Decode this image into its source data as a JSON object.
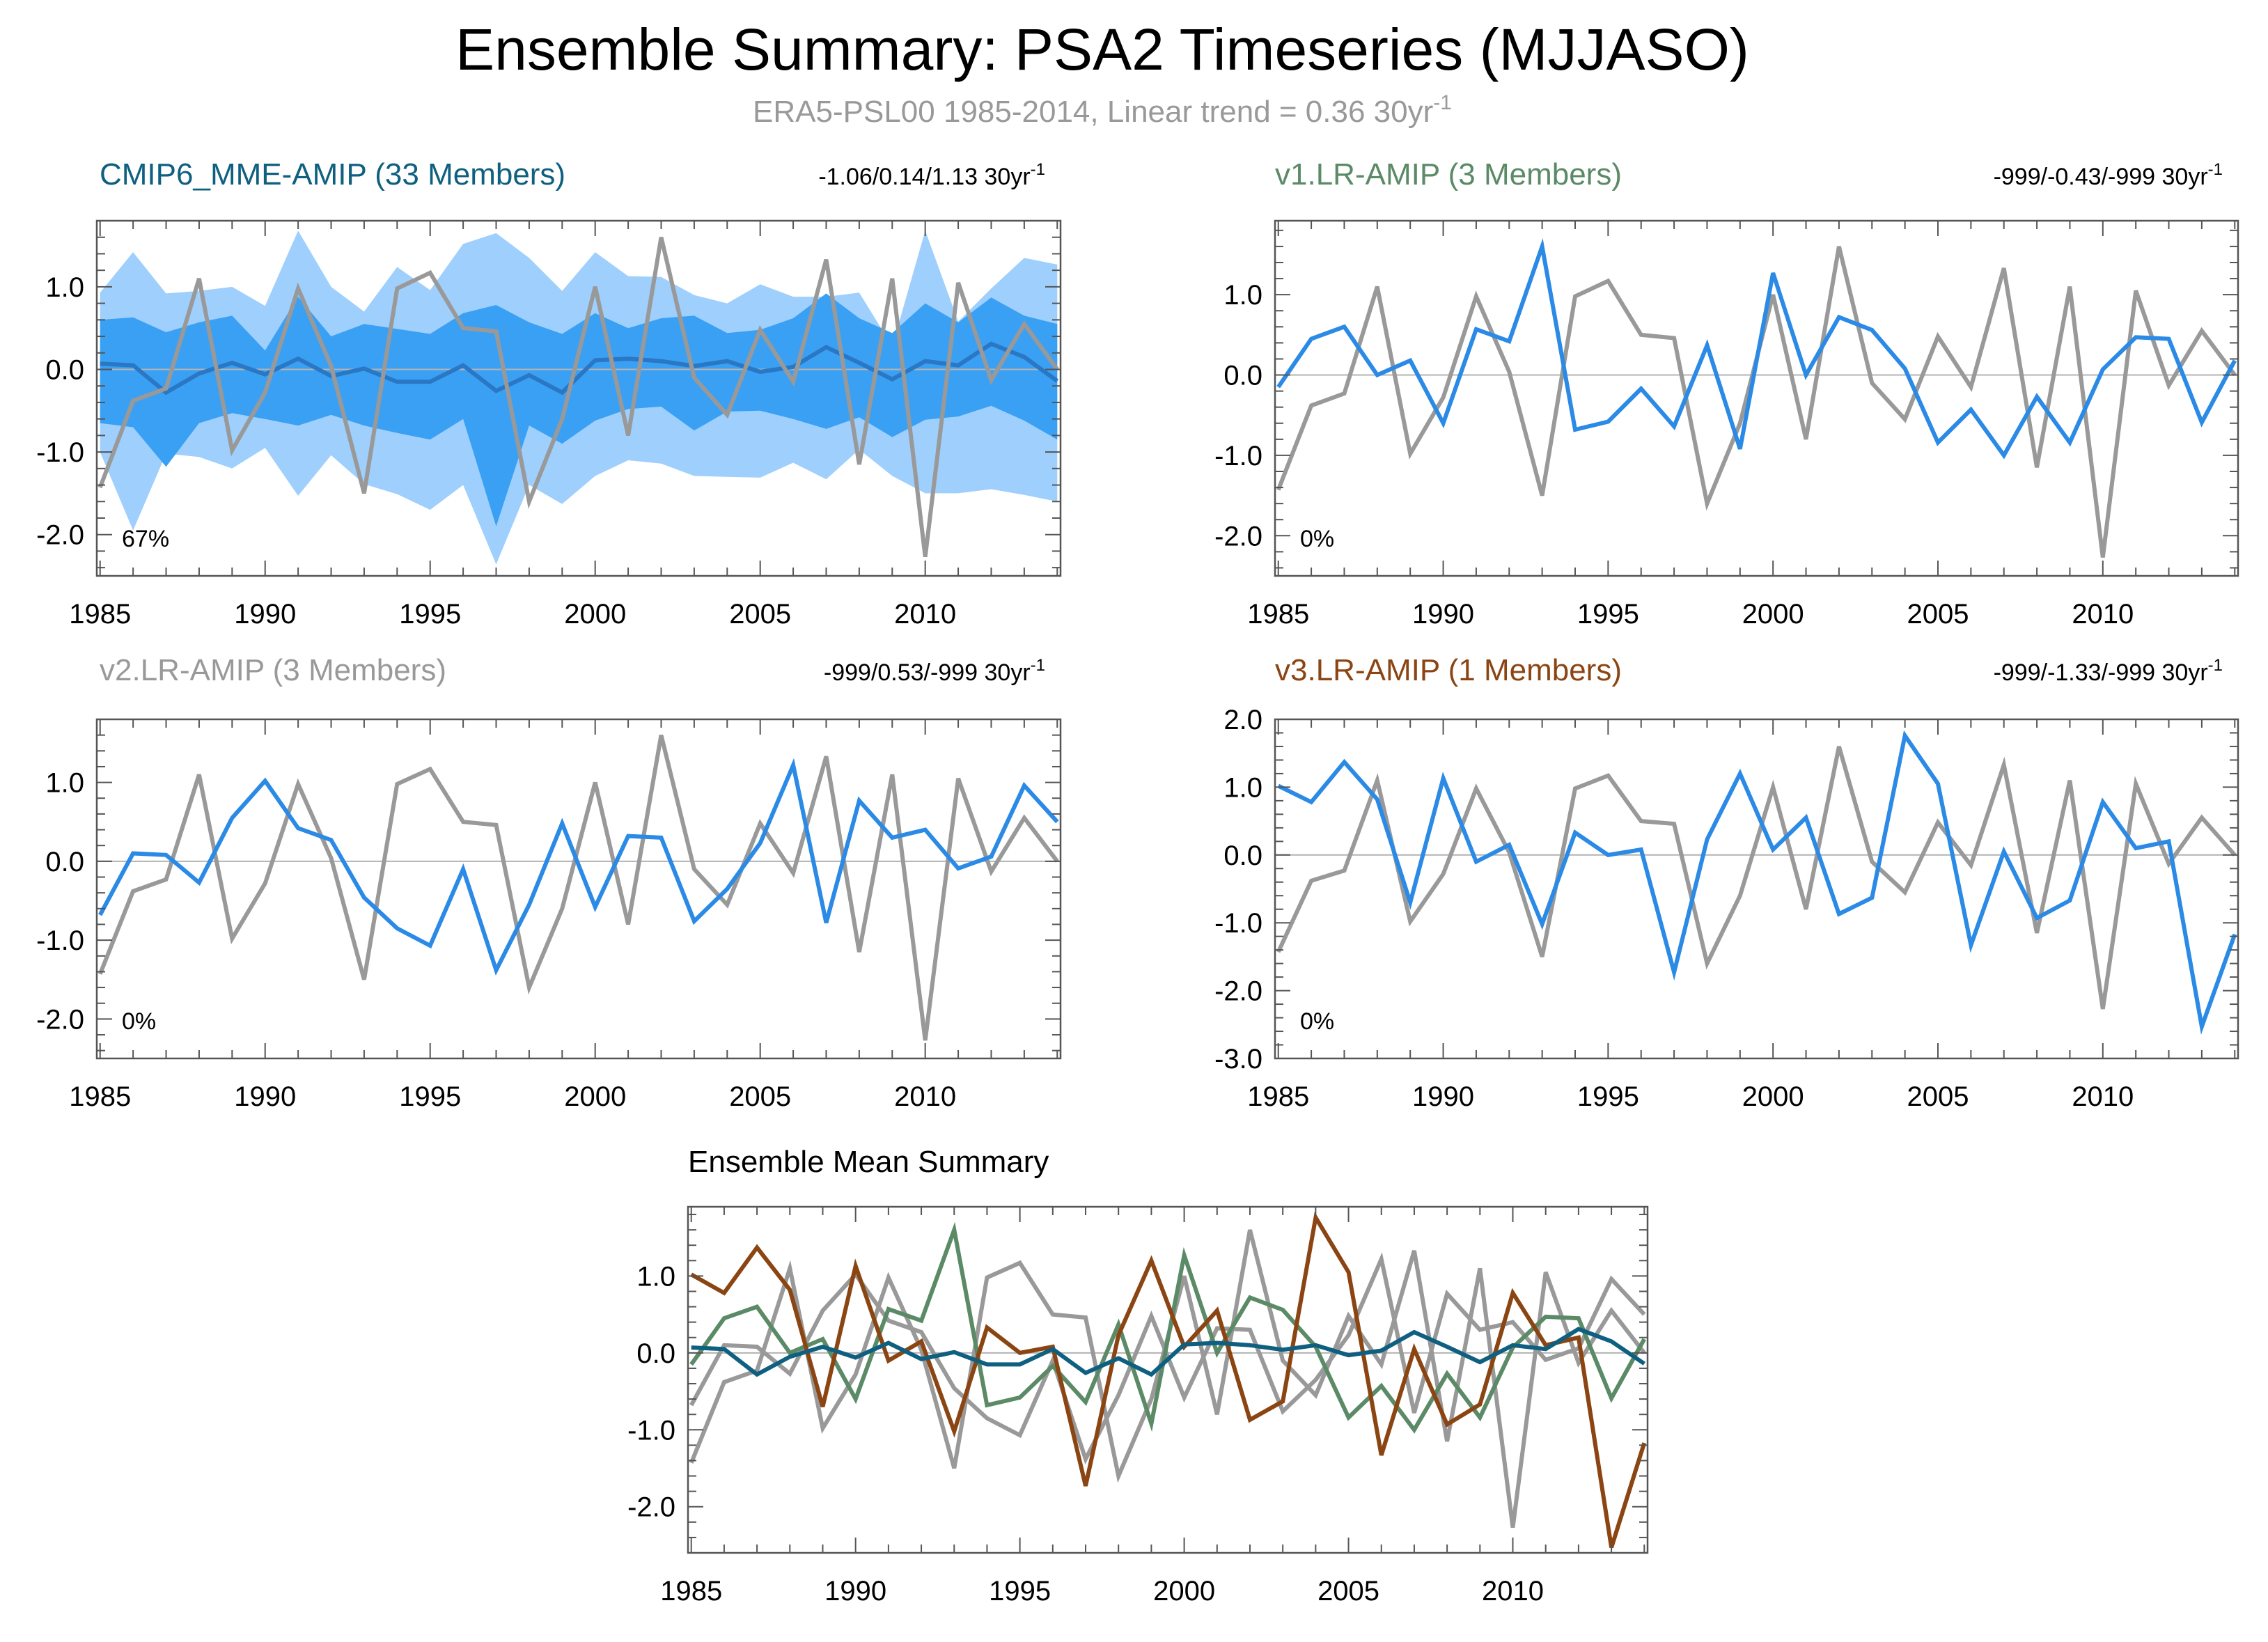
{
  "title": "Ensemble Summary: PSA2 Timeseries (MJJASO)",
  "subtitle": {
    "text": "ERA5-PSL00 1985-2014, Linear trend = 0.36 30yr",
    "sup": "-1"
  },
  "colors": {
    "observed": "#999999",
    "model": "#2a8ae6",
    "shade_outer": "#9fcffc",
    "shade_inner": "#3aa0f4",
    "mme_mean": "#2a77c4",
    "cmip6": "#0f6080",
    "v1": "#5b8a66",
    "v2": "#999999",
    "v3": "#8b4513",
    "zero_line": "#b3b3b3"
  },
  "chart_data": [
    {
      "id": "cmip6",
      "type": "line",
      "title": "CMIP6_MME-AMIP (33 Members)",
      "title_color": "#0f6080",
      "stats": "-1.06/0.14/1.13 30yr",
      "stats_sup": "-1",
      "pct": "67%",
      "x": [
        1985,
        1986,
        1987,
        1988,
        1989,
        1990,
        1991,
        1992,
        1993,
        1994,
        1995,
        1996,
        1997,
        1998,
        1999,
        2000,
        2001,
        2002,
        2003,
        2004,
        2005,
        2006,
        2007,
        2008,
        2009,
        2010,
        2011,
        2012,
        2013,
        2014
      ],
      "xticks": [
        1985,
        1990,
        1995,
        2000,
        2005,
        2010
      ],
      "xlim": [
        1984.9,
        2014.1
      ],
      "ylim": [
        -2.5,
        1.8
      ],
      "yticks": [
        1.0,
        0.0,
        -1.0,
        -2.0
      ],
      "ytick_labels": [
        "1.0",
        "0.0",
        "-1.0",
        "-2.0"
      ],
      "observed": [
        -1.43,
        -0.38,
        -0.23,
        1.1,
        -0.98,
        -0.28,
        0.98,
        0.04,
        -1.5,
        0.98,
        1.17,
        0.5,
        0.46,
        -1.6,
        -0.6,
        1.0,
        -0.8,
        1.6,
        -0.1,
        -0.55,
        0.48,
        -0.15,
        1.33,
        -1.15,
        1.1,
        -2.27,
        1.05,
        -0.13,
        0.55,
        0.0
      ],
      "bands": {
        "outer_upper": [
          0.93,
          1.42,
          0.92,
          0.95,
          1.0,
          0.77,
          1.68,
          1.0,
          0.7,
          1.24,
          0.96,
          1.52,
          1.65,
          1.35,
          0.95,
          1.42,
          1.13,
          1.12,
          0.9,
          0.8,
          1.03,
          0.88,
          0.88,
          0.93,
          0.28,
          1.68,
          0.58,
          0.98,
          1.35,
          1.27
        ],
        "outer_lower": [
          -1.0,
          -1.95,
          -1.02,
          -1.06,
          -1.2,
          -0.95,
          -1.53,
          -1.04,
          -1.39,
          -1.51,
          -1.7,
          -1.4,
          -2.36,
          -1.4,
          -1.63,
          -1.29,
          -1.1,
          -1.14,
          -1.29,
          -1.3,
          -1.31,
          -1.13,
          -1.33,
          -0.97,
          -1.29,
          -1.5,
          -1.5,
          -1.45,
          -1.52,
          -1.6
        ],
        "inner_upper": [
          0.6,
          0.63,
          0.45,
          0.57,
          0.65,
          0.23,
          0.88,
          0.4,
          0.55,
          0.49,
          0.43,
          0.68,
          0.78,
          0.57,
          0.43,
          0.68,
          0.5,
          0.62,
          0.65,
          0.44,
          0.48,
          0.62,
          0.92,
          0.62,
          0.44,
          0.8,
          0.57,
          0.87,
          0.65,
          0.55
        ],
        "inner_lower": [
          -0.65,
          -0.7,
          -1.18,
          -0.65,
          -0.53,
          -0.6,
          -0.68,
          -0.55,
          -0.68,
          -0.77,
          -0.85,
          -0.6,
          -1.9,
          -0.68,
          -0.9,
          -0.62,
          -0.48,
          -0.45,
          -0.74,
          -0.51,
          -0.5,
          -0.6,
          -0.72,
          -0.58,
          -0.82,
          -0.61,
          -0.57,
          -0.44,
          -0.62,
          -0.85
        ]
      },
      "mean": [
        0.07,
        0.05,
        -0.28,
        -0.05,
        0.08,
        -0.06,
        0.13,
        -0.08,
        0.01,
        -0.15,
        -0.15,
        0.05,
        -0.26,
        -0.07,
        -0.28,
        0.11,
        0.13,
        0.1,
        0.04,
        0.1,
        -0.03,
        0.03,
        0.27,
        0.08,
        -0.12,
        0.1,
        0.05,
        0.31,
        0.15,
        -0.14
      ]
    },
    {
      "id": "v1",
      "type": "line",
      "title": "v1.LR-AMIP (3 Members)",
      "title_color": "#5b8a66",
      "stats": "-999/-0.43/-999 30yr",
      "stats_sup": "-1",
      "pct": "0%",
      "x": [
        1985,
        1986,
        1987,
        1988,
        1989,
        1990,
        1991,
        1992,
        1993,
        1994,
        1995,
        1996,
        1997,
        1998,
        1999,
        2000,
        2001,
        2002,
        2003,
        2004,
        2005,
        2006,
        2007,
        2008,
        2009,
        2010,
        2011,
        2012,
        2013,
        2014
      ],
      "xticks": [
        1985,
        1990,
        1995,
        2000,
        2005,
        2010
      ],
      "xlim": [
        1984.9,
        2014.1
      ],
      "ylim": [
        -2.5,
        1.92
      ],
      "yticks": [
        1.0,
        0.0,
        -1.0,
        -2.0
      ],
      "ytick_labels": [
        "1.0",
        "0.0",
        "-1.0",
        "-2.0"
      ],
      "observed": [
        -1.43,
        -0.38,
        -0.23,
        1.1,
        -0.98,
        -0.28,
        0.98,
        0.04,
        -1.5,
        0.98,
        1.17,
        0.5,
        0.46,
        -1.6,
        -0.6,
        1.0,
        -0.8,
        1.6,
        -0.1,
        -0.55,
        0.48,
        -0.15,
        1.33,
        -1.15,
        1.1,
        -2.27,
        1.05,
        -0.13,
        0.55,
        0.0
      ],
      "model": [
        -0.15,
        0.45,
        0.6,
        0.0,
        0.18,
        -0.6,
        0.57,
        0.42,
        1.6,
        -0.68,
        -0.58,
        -0.17,
        -0.64,
        0.37,
        -0.92,
        1.27,
        0.0,
        0.72,
        0.56,
        0.08,
        -0.84,
        -0.43,
        -1.0,
        -0.27,
        -0.84,
        0.07,
        0.47,
        0.45,
        -0.59,
        0.18
      ]
    },
    {
      "id": "v2",
      "type": "line",
      "title": "v2.LR-AMIP (3 Members)",
      "title_color": "#999999",
      "stats": "-999/0.53/-999 30yr",
      "stats_sup": "-1",
      "pct": "0%",
      "x": [
        1985,
        1986,
        1987,
        1988,
        1989,
        1990,
        1991,
        1992,
        1993,
        1994,
        1995,
        1996,
        1997,
        1998,
        1999,
        2000,
        2001,
        2002,
        2003,
        2004,
        2005,
        2006,
        2007,
        2008,
        2009,
        2010,
        2011,
        2012,
        2013,
        2014
      ],
      "xticks": [
        1985,
        1990,
        1995,
        2000,
        2005,
        2010
      ],
      "xlim": [
        1984.9,
        2014.1
      ],
      "ylim": [
        -2.5,
        1.8
      ],
      "yticks": [
        1.0,
        0.0,
        -1.0,
        -2.0
      ],
      "ytick_labels": [
        "1.0",
        "0.0",
        "-1.0",
        "-2.0"
      ],
      "observed": [
        -1.43,
        -0.38,
        -0.23,
        1.1,
        -0.98,
        -0.28,
        0.98,
        0.04,
        -1.5,
        0.98,
        1.17,
        0.5,
        0.46,
        -1.6,
        -0.6,
        1.0,
        -0.8,
        1.6,
        -0.1,
        -0.55,
        0.48,
        -0.15,
        1.33,
        -1.15,
        1.1,
        -2.27,
        1.05,
        -0.13,
        0.55,
        0.0
      ],
      "model": [
        -0.68,
        0.1,
        0.08,
        -0.27,
        0.55,
        1.02,
        0.42,
        0.27,
        -0.46,
        -0.85,
        -1.07,
        -0.1,
        -1.38,
        -0.55,
        0.48,
        -0.58,
        0.32,
        0.3,
        -0.76,
        -0.35,
        0.23,
        1.22,
        -0.78,
        0.77,
        0.3,
        0.4,
        -0.09,
        0.06,
        0.96,
        0.5
      ]
    },
    {
      "id": "v3",
      "type": "line",
      "title": "v3.LR-AMIP (1 Members)",
      "title_color": "#8b4513",
      "stats": "-999/-1.33/-999 30yr",
      "stats_sup": "-1",
      "pct": "0%",
      "x": [
        1985,
        1986,
        1987,
        1988,
        1989,
        1990,
        1991,
        1992,
        1993,
        1994,
        1995,
        1996,
        1997,
        1998,
        1999,
        2000,
        2001,
        2002,
        2003,
        2004,
        2005,
        2006,
        2007,
        2008,
        2009,
        2010,
        2011,
        2012,
        2013,
        2014
      ],
      "xticks": [
        1985,
        1990,
        1995,
        2000,
        2005,
        2010
      ],
      "xlim": [
        1984.9,
        2014.1
      ],
      "ylim": [
        -3.0,
        2.0
      ],
      "yticks": [
        2.0,
        1.0,
        0.0,
        -1.0,
        -2.0,
        -3.0
      ],
      "ytick_labels": [
        "2.0",
        "1.0",
        "0.0",
        "-1.0",
        "-2.0",
        "-3.0"
      ],
      "observed": [
        -1.43,
        -0.38,
        -0.23,
        1.1,
        -0.98,
        -0.28,
        0.98,
        0.04,
        -1.5,
        0.98,
        1.17,
        0.5,
        0.46,
        -1.6,
        -0.6,
        1.0,
        -0.8,
        1.6,
        -0.1,
        -0.55,
        0.48,
        -0.15,
        1.33,
        -1.15,
        1.1,
        -2.27,
        1.05,
        -0.13,
        0.55,
        0.0
      ],
      "model": [
        1.02,
        0.78,
        1.37,
        0.82,
        -0.7,
        1.13,
        -0.1,
        0.15,
        -1.02,
        0.33,
        0.0,
        0.08,
        -1.73,
        0.23,
        1.2,
        0.08,
        0.55,
        -0.87,
        -0.63,
        1.76,
        1.05,
        -1.33,
        0.05,
        -0.93,
        -0.67,
        0.78,
        0.1,
        0.2,
        -2.53,
        -1.17
      ]
    },
    {
      "id": "mean_summary",
      "type": "line",
      "title": "Ensemble Mean Summary",
      "title_color": "#000000",
      "x": [
        1985,
        1986,
        1987,
        1988,
        1989,
        1990,
        1991,
        1992,
        1993,
        1994,
        1995,
        1996,
        1997,
        1998,
        1999,
        2000,
        2001,
        2002,
        2003,
        2004,
        2005,
        2006,
        2007,
        2008,
        2009,
        2010,
        2011,
        2012,
        2013,
        2014
      ],
      "xticks": [
        1985,
        1990,
        1995,
        2000,
        2005,
        2010
      ],
      "xlim": [
        1984.9,
        2014.1
      ],
      "ylim": [
        -2.6,
        1.9
      ],
      "yticks": [
        1.0,
        0.0,
        -1.0,
        -2.0
      ],
      "ytick_labels": [
        "1.0",
        "0.0",
        "-1.0",
        "-2.0"
      ],
      "series": [
        {
          "key": "observed",
          "color": "#999999",
          "values": [
            -1.43,
            -0.38,
            -0.23,
            1.1,
            -0.98,
            -0.28,
            0.98,
            0.04,
            -1.5,
            0.98,
            1.17,
            0.5,
            0.46,
            -1.6,
            -0.6,
            1.0,
            -0.8,
            1.6,
            -0.1,
            -0.55,
            0.48,
            -0.15,
            1.33,
            -1.15,
            1.1,
            -2.27,
            1.05,
            -0.13,
            0.55,
            0.0
          ]
        },
        {
          "key": "v2",
          "color": "#999999",
          "values": [
            -0.68,
            0.1,
            0.08,
            -0.27,
            0.55,
            1.02,
            0.42,
            0.27,
            -0.46,
            -0.85,
            -1.07,
            -0.1,
            -1.38,
            -0.55,
            0.48,
            -0.58,
            0.32,
            0.3,
            -0.76,
            -0.35,
            0.23,
            1.22,
            -0.78,
            0.77,
            0.3,
            0.4,
            -0.09,
            0.06,
            0.96,
            0.5
          ]
        },
        {
          "key": "v1",
          "color": "#5b8a66",
          "values": [
            -0.15,
            0.45,
            0.6,
            0.0,
            0.18,
            -0.6,
            0.57,
            0.42,
            1.6,
            -0.68,
            -0.58,
            -0.17,
            -0.64,
            0.37,
            -0.92,
            1.27,
            0.0,
            0.72,
            0.56,
            0.08,
            -0.84,
            -0.43,
            -1.0,
            -0.27,
            -0.84,
            0.07,
            0.47,
            0.45,
            -0.59,
            0.18
          ]
        },
        {
          "key": "v3",
          "color": "#8b4513",
          "values": [
            1.02,
            0.78,
            1.37,
            0.82,
            -0.7,
            1.13,
            -0.1,
            0.15,
            -1.02,
            0.33,
            0.0,
            0.08,
            -1.73,
            0.23,
            1.2,
            0.08,
            0.55,
            -0.87,
            -0.63,
            1.76,
            1.05,
            -1.33,
            0.05,
            -0.93,
            -0.67,
            0.78,
            0.1,
            0.2,
            -2.53,
            -1.17
          ]
        },
        {
          "key": "cmip6",
          "color": "#0f6080",
          "values": [
            0.07,
            0.05,
            -0.28,
            -0.05,
            0.08,
            -0.06,
            0.13,
            -0.08,
            0.01,
            -0.15,
            -0.15,
            0.05,
            -0.26,
            -0.07,
            -0.28,
            0.11,
            0.13,
            0.1,
            0.04,
            0.1,
            -0.03,
            0.03,
            0.27,
            0.08,
            -0.12,
            0.1,
            0.05,
            0.31,
            0.15,
            -0.14
          ]
        }
      ]
    }
  ]
}
